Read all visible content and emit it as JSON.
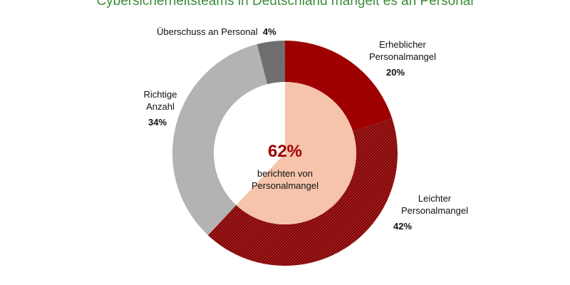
{
  "chart_data": {
    "type": "pie",
    "donut": true,
    "title": "Cybersicherheitsteams in Deutschland mangelt es an Personal",
    "categories": [
      "Erheblicher Personalmangel",
      "Leichter Personalmangel",
      "Richtige Anzahl",
      "Überschuss an Personal"
    ],
    "values": [
      20,
      42,
      34,
      4
    ],
    "labels": [
      "20%",
      "42%",
      "34%",
      "4%"
    ],
    "colors": [
      "#a50000",
      "#b01010",
      "#b3b3b3",
      "#6f6f6f"
    ],
    "patterns": [
      "dotted",
      "diagonal-hatch",
      "solid",
      "solid"
    ],
    "center": {
      "value": "62%",
      "text_line1": "berichten von",
      "text_line2": "Personalmangel",
      "highlight_color": "#f5c4ab",
      "value_color": "#a00000"
    },
    "title_color": "#3b8c3b"
  }
}
